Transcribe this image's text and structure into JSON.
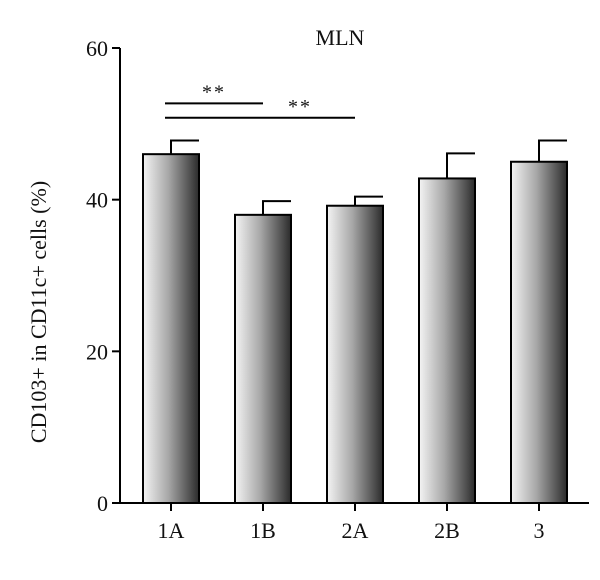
{
  "chart_data": {
    "type": "bar",
    "title": "MLN",
    "xlabel": "",
    "ylabel": "CD103+ in CD11c+ cells (%)",
    "categories": [
      "1A",
      "1B",
      "2A",
      "2B",
      "3"
    ],
    "values": [
      46.0,
      38.0,
      39.2,
      42.8,
      45.0
    ],
    "errors": [
      1.8,
      1.8,
      1.2,
      3.3,
      2.8
    ],
    "ylim": [
      0,
      60
    ],
    "yticks": [
      0,
      20,
      40,
      60
    ],
    "grid": false,
    "significance": [
      {
        "from": "1A",
        "to": "1B",
        "label": "**",
        "y": 52.7
      },
      {
        "from": "1A",
        "to": "2A",
        "label": "**",
        "y": 50.8
      }
    ]
  }
}
